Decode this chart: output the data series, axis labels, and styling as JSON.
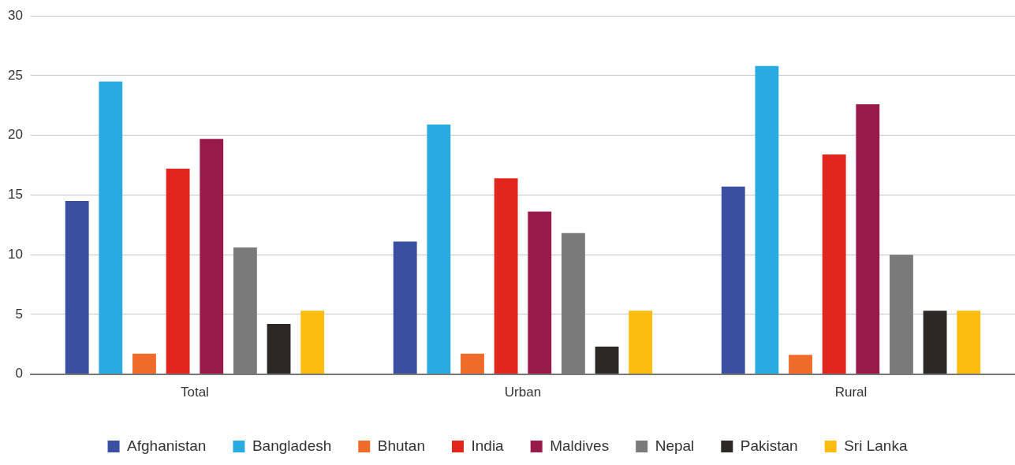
{
  "chart_data": {
    "type": "bar",
    "categories": [
      "Total",
      "Urban",
      "Rural"
    ],
    "series": [
      {
        "name": "Afghanistan",
        "color": "#38509f",
        "values": [
          14.5,
          11.1,
          15.7
        ]
      },
      {
        "name": "Bangladesh",
        "color": "#29abe2",
        "values": [
          24.5,
          20.9,
          25.8
        ]
      },
      {
        "name": "Bhutan",
        "color": "#ee6b2a",
        "values": [
          1.7,
          1.7,
          1.6
        ]
      },
      {
        "name": "India",
        "color": "#e2261d",
        "values": [
          17.2,
          16.4,
          18.4
        ]
      },
      {
        "name": "Maldives",
        "color": "#981a48",
        "values": [
          19.7,
          13.6,
          22.6
        ]
      },
      {
        "name": "Nepal",
        "color": "#7a7a7a",
        "values": [
          10.6,
          11.8,
          10.0
        ]
      },
      {
        "name": "Pakistan",
        "color": "#2b2825",
        "values": [
          4.2,
          2.3,
          5.3
        ]
      },
      {
        "name": "Sri Lanka",
        "color": "#fcbd10",
        "values": [
          5.3,
          5.3,
          5.3
        ]
      }
    ],
    "ylim": [
      0,
      30
    ],
    "yticks": [
      0,
      5,
      10,
      15,
      20,
      25,
      30
    ],
    "grid": "y",
    "legend": "bottom"
  }
}
